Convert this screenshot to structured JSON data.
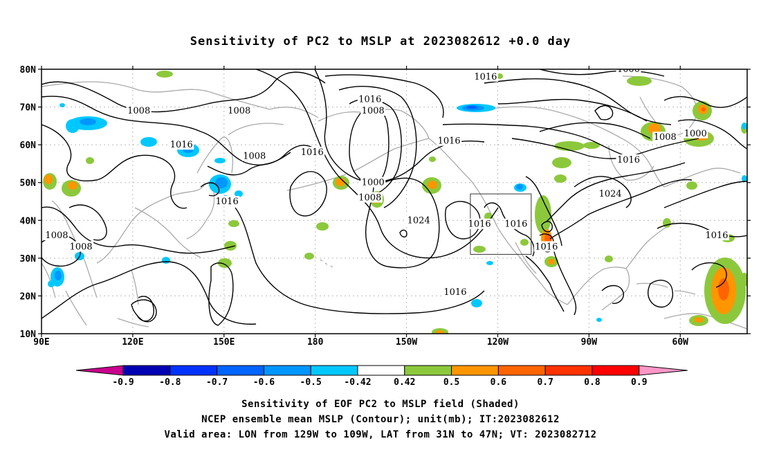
{
  "title": "Sensitivity of PC2 to MSLP at 2023082612 +0.0 day",
  "map": {
    "lat_ticks": [
      "80N",
      "70N",
      "60N",
      "50N",
      "40N",
      "30N",
      "20N",
      "10N"
    ],
    "lon_ticks": [
      "90E",
      "120E",
      "150E",
      "180",
      "150W",
      "120W",
      "90W",
      "60W"
    ],
    "valid_box": {
      "lon_from": "129W",
      "lon_to": "109W",
      "lat_from": "31N",
      "lat_to": "47N"
    },
    "contour_labels": [
      {
        "text": "1016",
        "lon": 236,
        "lat": 78
      },
      {
        "text": "1000",
        "lon": 283,
        "lat": 80
      },
      {
        "text": "1016",
        "lon": 198,
        "lat": 72
      },
      {
        "text": "1008",
        "lon": 199,
        "lat": 69
      },
      {
        "text": "1008",
        "lon": 122,
        "lat": 69
      },
      {
        "text": "1008",
        "lon": 155,
        "lat": 69
      },
      {
        "text": "1016",
        "lon": 136,
        "lat": 60
      },
      {
        "text": "1008",
        "lon": 160,
        "lat": 57
      },
      {
        "text": "1016",
        "lon": 179,
        "lat": 58
      },
      {
        "text": "1016",
        "lon": 224,
        "lat": 61
      },
      {
        "text": "1008",
        "lon": 295,
        "lat": 62
      },
      {
        "text": "1000",
        "lon": 305,
        "lat": 63
      },
      {
        "text": "1016",
        "lon": 283,
        "lat": 56
      },
      {
        "text": "1000",
        "lon": 199,
        "lat": 50
      },
      {
        "text": "1008",
        "lon": 198,
        "lat": 46
      },
      {
        "text": "1016",
        "lon": 151,
        "lat": 45
      },
      {
        "text": "1024",
        "lon": 277,
        "lat": 47
      },
      {
        "text": "1024",
        "lon": 214,
        "lat": 40
      },
      {
        "text": "1016",
        "lon": 234,
        "lat": 39
      },
      {
        "text": "1016",
        "lon": 246,
        "lat": 39
      },
      {
        "text": "1016",
        "lon": 256,
        "lat": 33
      },
      {
        "text": "1016",
        "lon": 312,
        "lat": 36
      },
      {
        "text": "1016",
        "lon": 226,
        "lat": 21
      },
      {
        "text": "1008",
        "lon": 95,
        "lat": 36
      },
      {
        "text": "1008",
        "lon": 103,
        "lat": 33
      }
    ]
  },
  "colorbar": {
    "labels": [
      "-0.9",
      "-0.8",
      "-0.7",
      "-0.6",
      "-0.5",
      "-0.42",
      "0.42",
      "0.5",
      "0.6",
      "0.7",
      "0.8",
      "0.9"
    ],
    "colors": [
      "#0000b4",
      "#0032ff",
      "#0064ff",
      "#0096ff",
      "#00c8ff",
      "#ffffff",
      "#8cc83c",
      "#ff9600",
      "#ff6400",
      "#ff3200",
      "#ff0000"
    ],
    "low_color": "#c8008c",
    "high_color": "#ff96c8"
  },
  "caption": {
    "line1": "Sensitivity of EOF PC2 to MSLP field (Shaded)",
    "line2": "NCEP ensemble mean MSLP (Contour); unit(mb); IT:2023082612",
    "line3": "Valid area: LON from 129W to 109W, LAT from 31N to 47N; VT: 2023082712"
  }
}
